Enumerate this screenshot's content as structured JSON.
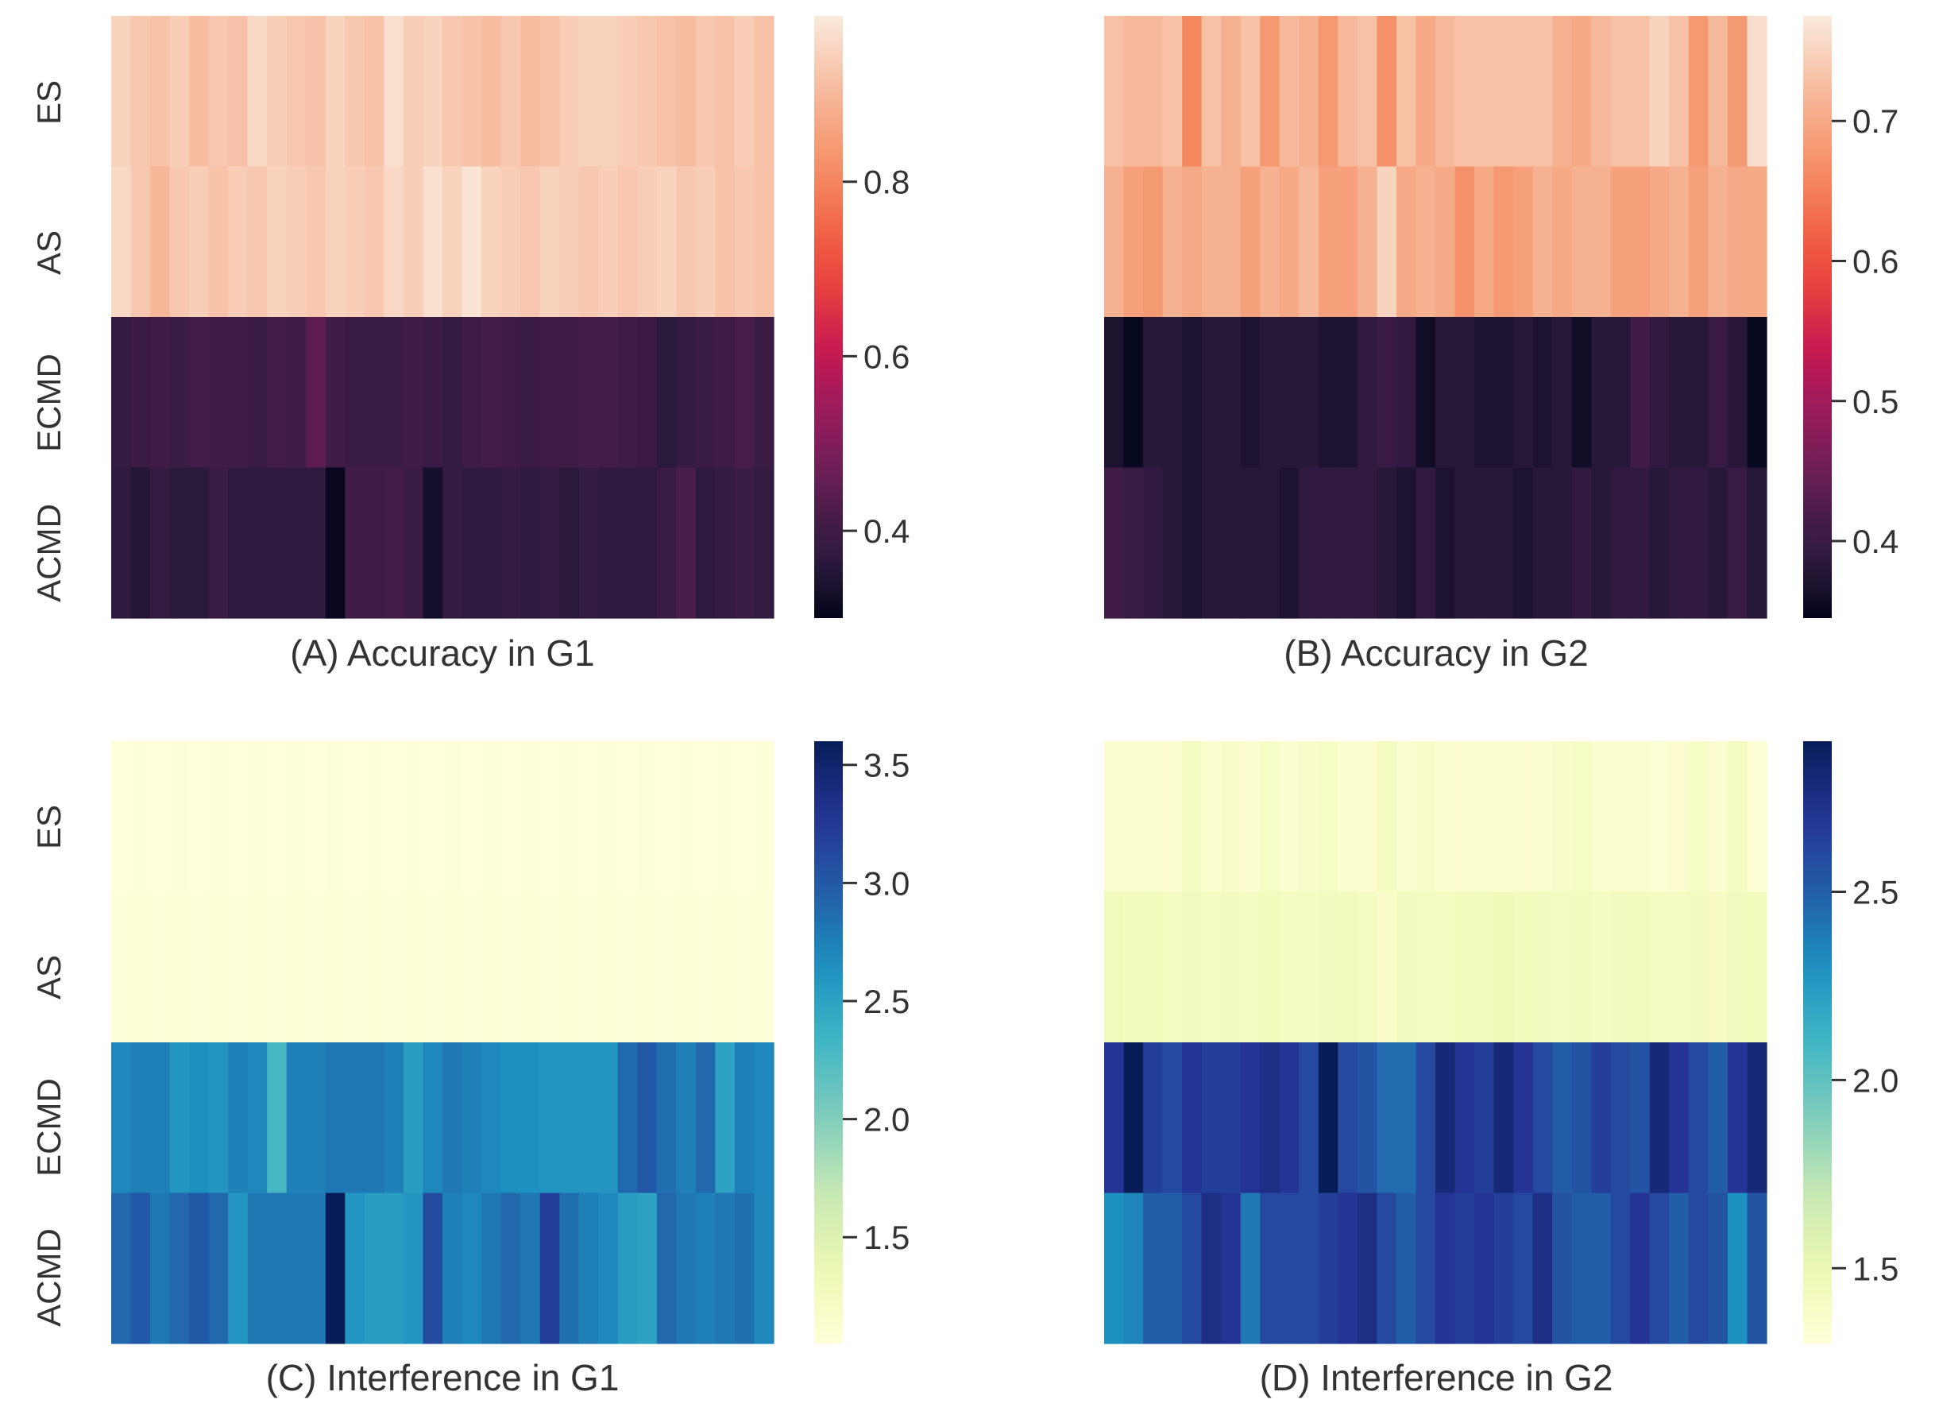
{
  "chart_data": [
    {
      "type": "heatmap",
      "title": "(A) Accuracy in G1",
      "rows": [
        "ES",
        "AS",
        "ECMD",
        "ACMD"
      ],
      "colormap": "rocket",
      "colorbar": {
        "vmin": 0.3,
        "vmax": 0.99,
        "ticks": [
          0.4,
          0.6,
          0.8
        ],
        "tick_labels": [
          "0.4",
          "0.6",
          "0.8"
        ]
      },
      "values": [
        [
          0.95,
          0.93,
          0.92,
          0.94,
          0.91,
          0.93,
          0.92,
          0.96,
          0.94,
          0.93,
          0.92,
          0.95,
          0.93,
          0.92,
          0.97,
          0.94,
          0.95,
          0.93,
          0.92,
          0.91,
          0.93,
          0.91,
          0.92,
          0.94,
          0.95,
          0.95,
          0.94,
          0.93,
          0.92,
          0.91,
          0.93,
          0.92,
          0.94,
          0.92
        ],
        [
          0.96,
          0.93,
          0.9,
          0.93,
          0.94,
          0.92,
          0.94,
          0.93,
          0.95,
          0.94,
          0.93,
          0.95,
          0.94,
          0.93,
          0.96,
          0.94,
          0.97,
          0.95,
          0.98,
          0.95,
          0.94,
          0.93,
          0.95,
          0.94,
          0.93,
          0.94,
          0.93,
          0.94,
          0.95,
          0.93,
          0.94,
          0.92,
          0.93,
          0.92
        ],
        [
          0.38,
          0.39,
          0.4,
          0.39,
          0.41,
          0.4,
          0.4,
          0.39,
          0.41,
          0.4,
          0.45,
          0.4,
          0.39,
          0.39,
          0.39,
          0.4,
          0.39,
          0.38,
          0.4,
          0.41,
          0.4,
          0.39,
          0.4,
          0.4,
          0.41,
          0.41,
          0.4,
          0.39,
          0.36,
          0.38,
          0.39,
          0.4,
          0.42,
          0.39
        ],
        [
          0.37,
          0.35,
          0.38,
          0.36,
          0.36,
          0.39,
          0.37,
          0.37,
          0.37,
          0.37,
          0.37,
          0.31,
          0.4,
          0.4,
          0.41,
          0.39,
          0.33,
          0.38,
          0.37,
          0.37,
          0.38,
          0.37,
          0.38,
          0.36,
          0.38,
          0.37,
          0.37,
          0.37,
          0.39,
          0.42,
          0.37,
          0.38,
          0.39,
          0.38
        ]
      ]
    },
    {
      "type": "heatmap",
      "title": "(B) Accuracy in G2",
      "rows": [
        "ES",
        "AS",
        "ECMD",
        "ACMD"
      ],
      "colormap": "rocket",
      "colorbar": {
        "vmin": 0.345,
        "vmax": 0.775,
        "ticks": [
          0.4,
          0.5,
          0.6,
          0.7
        ],
        "tick_labels": [
          "0.4",
          "0.5",
          "0.6",
          "0.7"
        ]
      },
      "values": [
        [
          0.73,
          0.72,
          0.72,
          0.73,
          0.66,
          0.73,
          0.71,
          0.73,
          0.68,
          0.72,
          0.71,
          0.68,
          0.72,
          0.73,
          0.67,
          0.73,
          0.7,
          0.72,
          0.73,
          0.73,
          0.73,
          0.73,
          0.73,
          0.71,
          0.7,
          0.72,
          0.73,
          0.73,
          0.75,
          0.73,
          0.68,
          0.72,
          0.68,
          0.76
        ],
        [
          0.71,
          0.69,
          0.68,
          0.71,
          0.7,
          0.71,
          0.71,
          0.69,
          0.71,
          0.7,
          0.72,
          0.69,
          0.69,
          0.71,
          0.75,
          0.7,
          0.71,
          0.7,
          0.67,
          0.7,
          0.68,
          0.69,
          0.71,
          0.7,
          0.71,
          0.71,
          0.69,
          0.69,
          0.7,
          0.71,
          0.69,
          0.71,
          0.7,
          0.7
        ],
        [
          0.37,
          0.35,
          0.38,
          0.38,
          0.37,
          0.38,
          0.38,
          0.37,
          0.38,
          0.38,
          0.38,
          0.37,
          0.37,
          0.39,
          0.4,
          0.39,
          0.36,
          0.38,
          0.38,
          0.37,
          0.37,
          0.38,
          0.37,
          0.38,
          0.36,
          0.38,
          0.38,
          0.41,
          0.39,
          0.38,
          0.38,
          0.4,
          0.38,
          0.35
        ],
        [
          0.41,
          0.4,
          0.39,
          0.38,
          0.37,
          0.38,
          0.38,
          0.38,
          0.38,
          0.37,
          0.39,
          0.39,
          0.39,
          0.39,
          0.38,
          0.37,
          0.39,
          0.37,
          0.38,
          0.38,
          0.38,
          0.37,
          0.38,
          0.38,
          0.39,
          0.38,
          0.39,
          0.39,
          0.38,
          0.39,
          0.39,
          0.38,
          0.4,
          0.38
        ]
      ]
    },
    {
      "type": "heatmap",
      "title": "(C) Interference in G1",
      "rows": [
        "ES",
        "AS",
        "ECMD",
        "ACMD"
      ],
      "colormap": "YlGnBu",
      "colorbar": {
        "vmin": 1.05,
        "vmax": 3.6,
        "ticks": [
          1.5,
          2.0,
          2.5,
          3.0,
          3.5
        ],
        "tick_labels": [
          "1.5",
          "2.0",
          "2.5",
          "3.0",
          "3.5"
        ]
      },
      "values": [
        [
          1.05,
          1.06,
          1.05,
          1.06,
          1.05,
          1.06,
          1.05,
          1.06,
          1.05,
          1.06,
          1.05,
          1.06,
          1.05,
          1.06,
          1.05,
          1.06,
          1.05,
          1.06,
          1.05,
          1.06,
          1.05,
          1.06,
          1.05,
          1.06,
          1.05,
          1.06,
          1.05,
          1.06,
          1.05,
          1.06,
          1.05,
          1.06,
          1.05,
          1.06
        ],
        [
          1.06,
          1.07,
          1.06,
          1.07,
          1.06,
          1.07,
          1.06,
          1.07,
          1.06,
          1.07,
          1.06,
          1.07,
          1.06,
          1.07,
          1.06,
          1.07,
          1.06,
          1.07,
          1.06,
          1.07,
          1.06,
          1.07,
          1.06,
          1.07,
          1.06,
          1.07,
          1.06,
          1.07,
          1.06,
          1.07,
          1.06,
          1.07,
          1.06,
          1.07
        ],
        [
          2.7,
          2.75,
          2.75,
          2.6,
          2.65,
          2.6,
          2.75,
          2.7,
          2.3,
          2.75,
          2.75,
          2.8,
          2.8,
          2.8,
          2.75,
          2.55,
          2.7,
          2.8,
          2.75,
          2.7,
          2.65,
          2.65,
          2.6,
          2.6,
          2.6,
          2.6,
          2.9,
          3.0,
          2.85,
          2.75,
          2.9,
          2.5,
          2.75,
          2.7
        ],
        [
          2.9,
          3.0,
          2.8,
          2.9,
          3.0,
          2.9,
          2.6,
          2.8,
          2.8,
          2.8,
          2.8,
          3.6,
          2.6,
          2.55,
          2.55,
          2.6,
          3.1,
          2.75,
          2.7,
          2.8,
          2.9,
          2.8,
          3.2,
          2.85,
          2.75,
          2.7,
          2.55,
          2.5,
          2.9,
          2.8,
          2.75,
          2.8,
          2.85,
          2.7
        ]
      ]
    },
    {
      "type": "heatmap",
      "title": "(D) Interference in G2",
      "rows": [
        "ES",
        "AS",
        "ECMD",
        "ACMD"
      ],
      "colormap": "YlGnBu",
      "colorbar": {
        "vmin": 1.3,
        "vmax": 2.9,
        "ticks": [
          1.5,
          2.0,
          2.5
        ],
        "tick_labels": [
          "1.5",
          "2.0",
          "2.5"
        ]
      },
      "values": [
        [
          1.35,
          1.35,
          1.36,
          1.35,
          1.42,
          1.36,
          1.38,
          1.35,
          1.4,
          1.36,
          1.38,
          1.4,
          1.36,
          1.35,
          1.42,
          1.36,
          1.38,
          1.36,
          1.35,
          1.36,
          1.36,
          1.35,
          1.36,
          1.38,
          1.4,
          1.36,
          1.35,
          1.35,
          1.33,
          1.35,
          1.4,
          1.36,
          1.42,
          1.33
        ],
        [
          1.45,
          1.44,
          1.44,
          1.42,
          1.43,
          1.42,
          1.43,
          1.42,
          1.44,
          1.42,
          1.42,
          1.43,
          1.44,
          1.42,
          1.38,
          1.43,
          1.42,
          1.42,
          1.45,
          1.44,
          1.46,
          1.44,
          1.43,
          1.42,
          1.44,
          1.42,
          1.43,
          1.44,
          1.42,
          1.42,
          1.43,
          1.41,
          1.43,
          1.44
        ],
        [
          2.7,
          2.9,
          2.65,
          2.6,
          2.7,
          2.65,
          2.65,
          2.7,
          2.75,
          2.7,
          2.6,
          2.9,
          2.6,
          2.55,
          2.45,
          2.45,
          2.6,
          2.8,
          2.7,
          2.65,
          2.8,
          2.7,
          2.6,
          2.5,
          2.55,
          2.65,
          2.6,
          2.55,
          2.8,
          2.7,
          2.6,
          2.5,
          2.7,
          2.8
        ],
        [
          2.3,
          2.35,
          2.5,
          2.5,
          2.6,
          2.75,
          2.7,
          2.4,
          2.6,
          2.6,
          2.6,
          2.65,
          2.7,
          2.75,
          2.6,
          2.5,
          2.6,
          2.7,
          2.65,
          2.7,
          2.65,
          2.6,
          2.75,
          2.55,
          2.5,
          2.5,
          2.6,
          2.7,
          2.6,
          2.5,
          2.6,
          2.55,
          2.3,
          2.55
        ]
      ]
    }
  ]
}
